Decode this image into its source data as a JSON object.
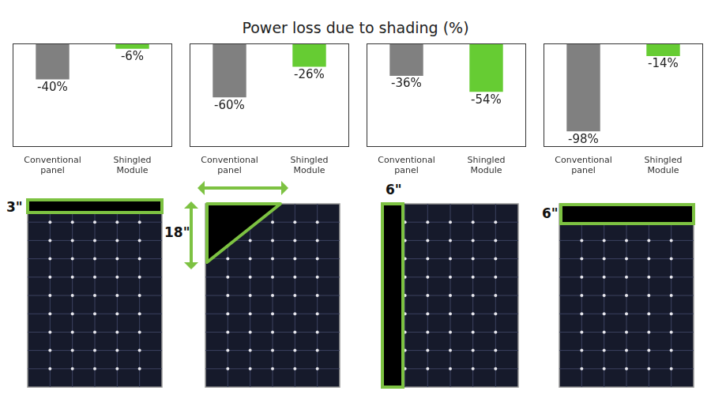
{
  "title": "Power loss due to shading (%)",
  "chart_data": [
    {
      "type": "bar",
      "categories": [
        "Conventional panel",
        "Shingled Module"
      ],
      "values": [
        -40,
        -6
      ],
      "value_labels": [
        "-40%",
        "-6%"
      ],
      "colors": [
        "#808080",
        "#66cc33"
      ],
      "ylim": [
        -115,
        0
      ],
      "grid": false,
      "data_labels": true,
      "tick_labels": "x"
    },
    {
      "type": "bar",
      "categories": [
        "Conventional panel",
        "Shingled Module"
      ],
      "values": [
        -60,
        -26
      ],
      "value_labels": [
        "-60%",
        "-26%"
      ],
      "colors": [
        "#808080",
        "#66cc33"
      ],
      "ylim": [
        -115,
        0
      ],
      "grid": false,
      "data_labels": true,
      "tick_labels": "x"
    },
    {
      "type": "bar",
      "categories": [
        "Conventional panel",
        "Shingled Module"
      ],
      "values": [
        -36,
        -54
      ],
      "value_labels": [
        "-36%",
        "-54%"
      ],
      "colors": [
        "#808080",
        "#66cc33"
      ],
      "ylim": [
        -115,
        0
      ],
      "grid": false,
      "data_labels": true,
      "tick_labels": "x"
    },
    {
      "type": "bar",
      "categories": [
        "Conventional panel",
        "Shingled Module"
      ],
      "values": [
        -98,
        -14
      ],
      "value_labels": [
        "-98%",
        "-14%"
      ],
      "colors": [
        "#808080",
        "#66cc33"
      ],
      "ylim": [
        -115,
        0
      ],
      "grid": false,
      "data_labels": true,
      "tick_labels": "x"
    }
  ],
  "panels": [
    {
      "label": "3\""
    },
    {
      "label": "18\""
    },
    {
      "label": "6\""
    },
    {
      "label": "6\""
    }
  ]
}
